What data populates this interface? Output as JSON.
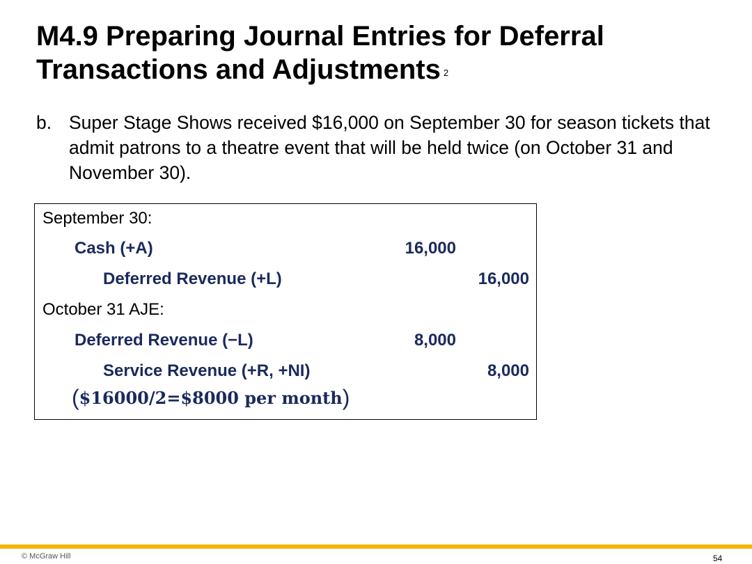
{
  "slide": {
    "title": "M4.9 Preparing Journal Entries for Deferral Transactions and Adjustments",
    "title_superscript": "2",
    "question_marker": "b.",
    "question_text": "Super Stage Shows received $16,000 on September 30 for season tickets that admit patrons to a theatre event that will be held twice (on October 31 and November 30).",
    "accent_color": "#f5b400",
    "account_text_color": "#1a2a5c"
  },
  "journal": {
    "entries": [
      {
        "date_label": "September 30:",
        "debit_account": "Cash (+A)",
        "debit_amount": "16,000",
        "credit_account": "Deferred Revenue (+L)",
        "credit_amount": "16,000"
      },
      {
        "date_label": "October 31 AJE:",
        "debit_account": "Deferred Revenue (−L)",
        "debit_amount": "8,000",
        "credit_account": "Service Revenue (+R, +NI)",
        "credit_amount": "8,000"
      }
    ],
    "note_open": "(",
    "note": "$16000/2=$8000 per month",
    "note_close": ")"
  },
  "footer": {
    "copyright": "© McGraw Hill",
    "page_number": "54"
  }
}
